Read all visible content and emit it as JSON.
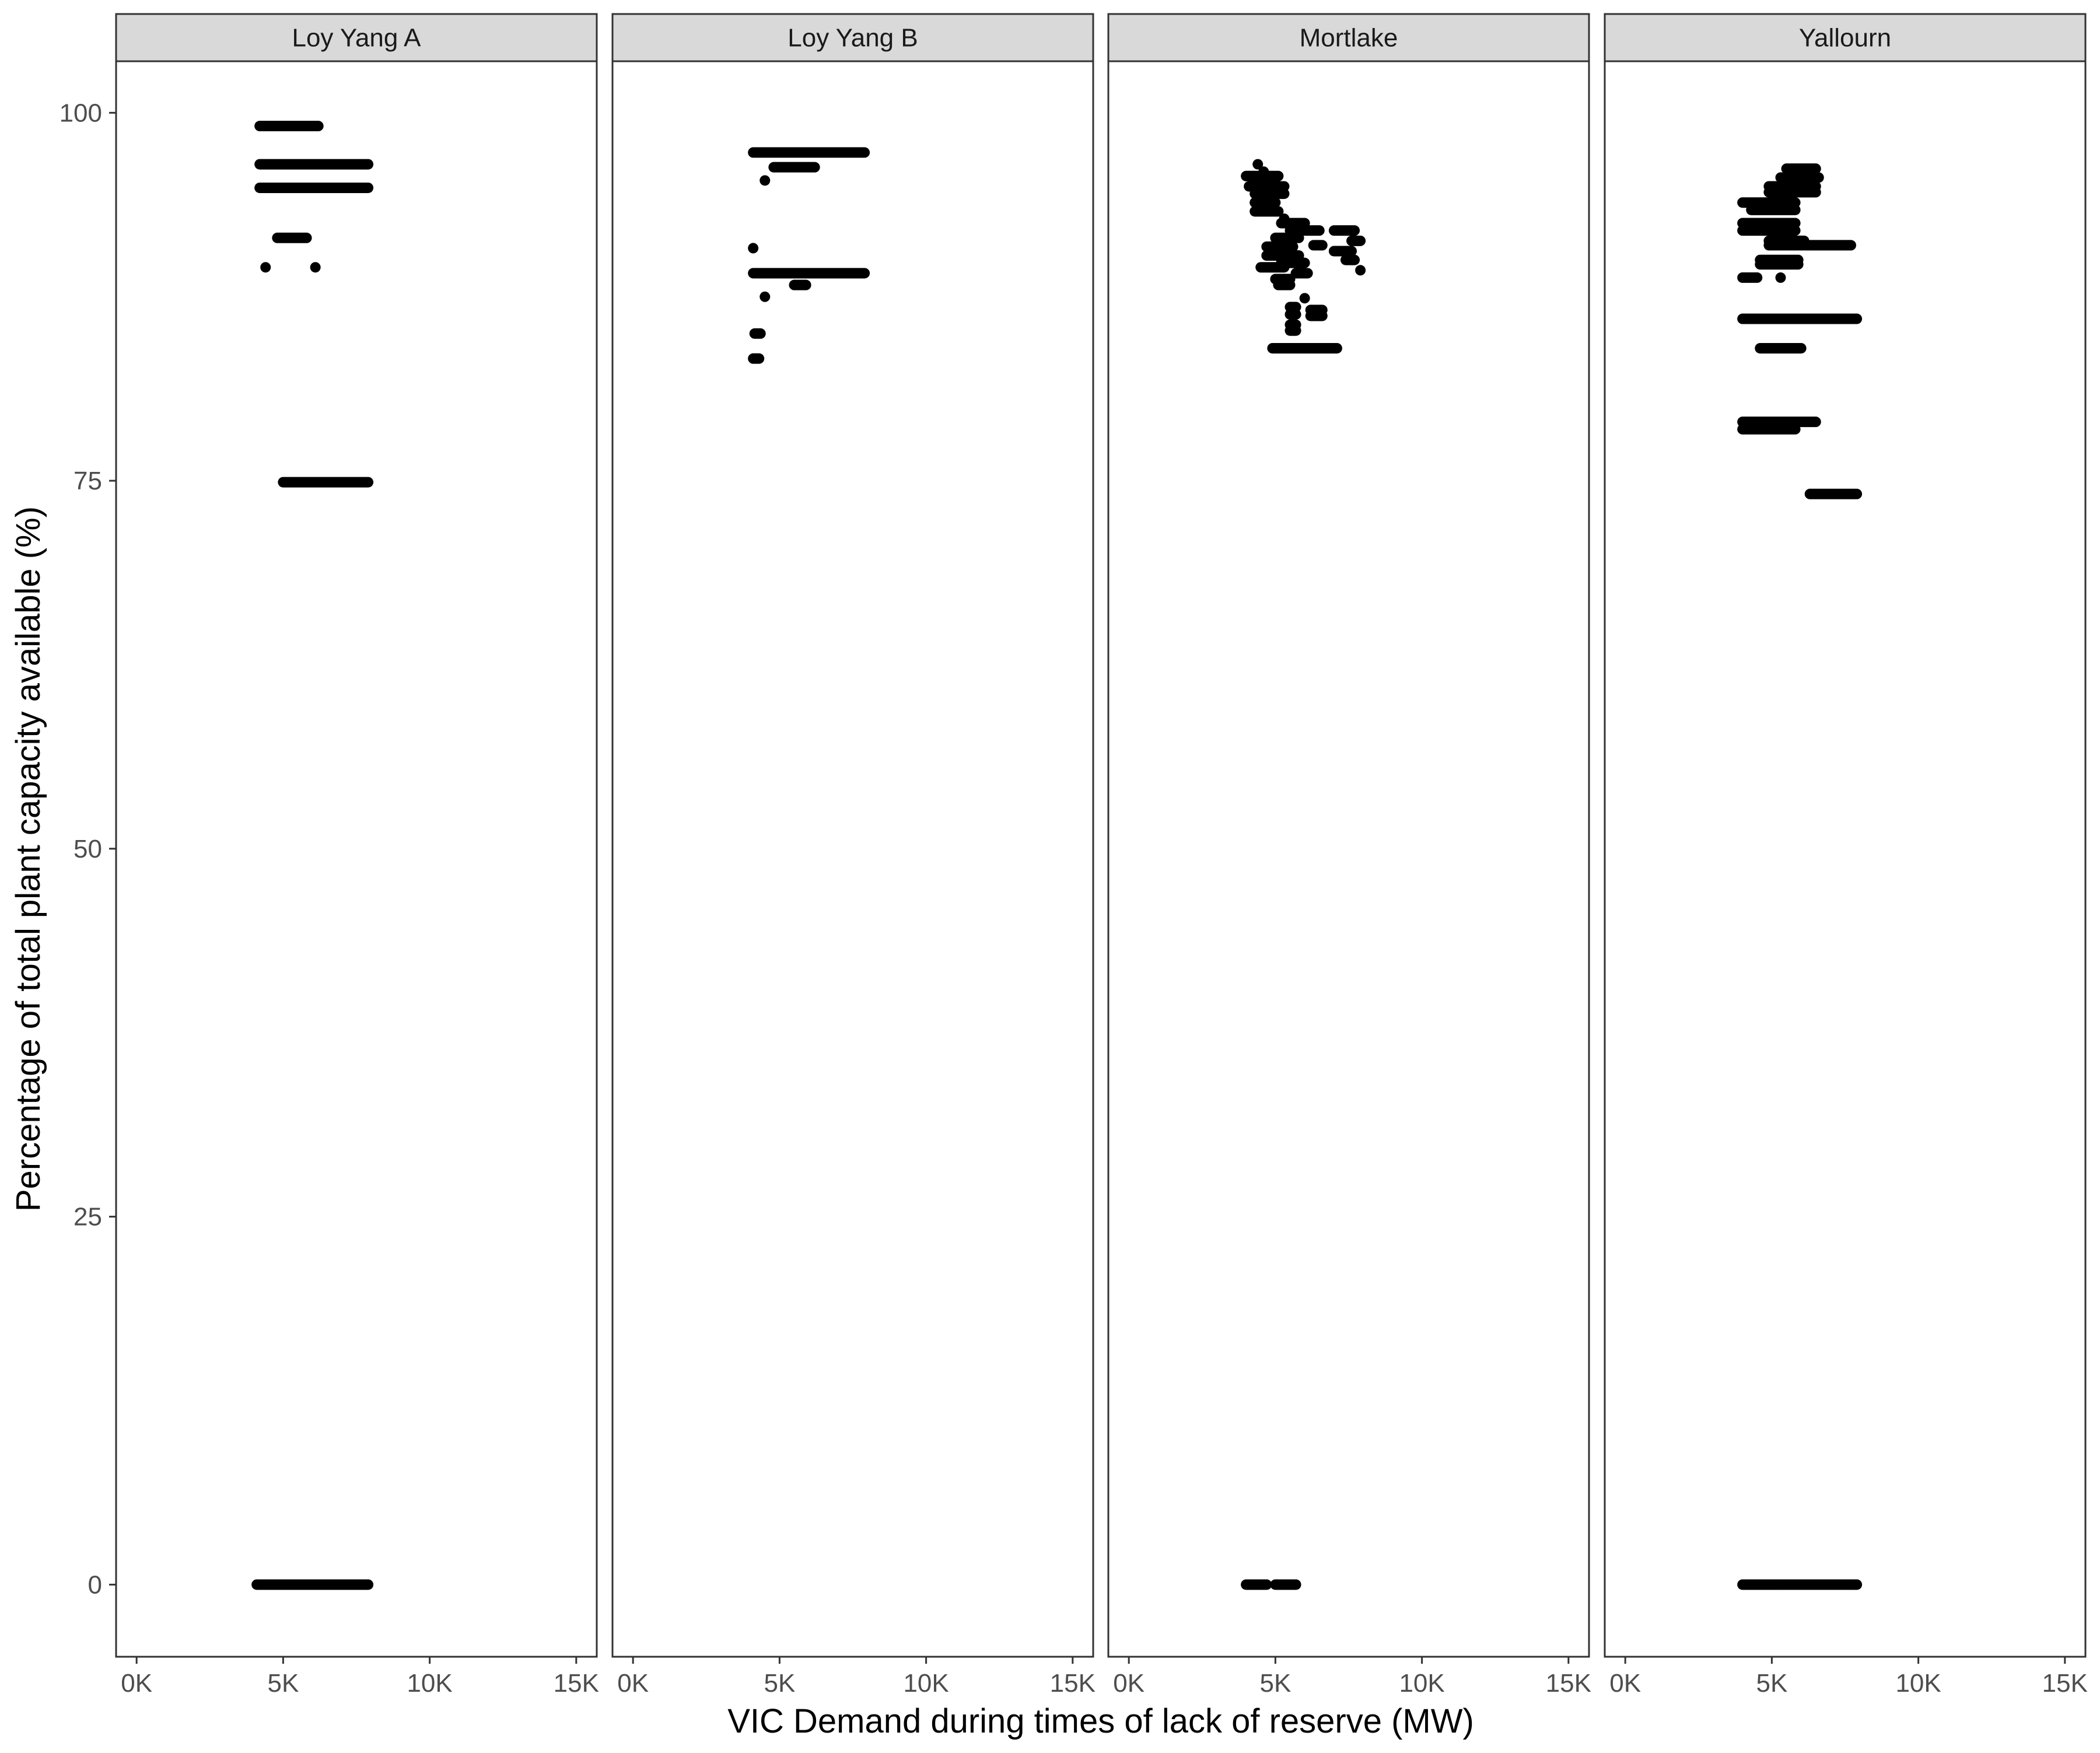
{
  "chart_data": {
    "type": "scatter",
    "facet_by": "plant",
    "xlabel": "VIC Demand during times of lack of reserve (MW)",
    "ylabel": "Percentage of total plant capacity available (%)",
    "xlim": [
      -700,
      15700
    ],
    "ylim": [
      -4.9,
      103.5
    ],
    "x_ticks": [
      0,
      5000,
      10000,
      15000
    ],
    "x_tick_labels": [
      "0K",
      "5K",
      "10K",
      "15K"
    ],
    "y_ticks": [
      0,
      25,
      50,
      75,
      100
    ],
    "y_tick_labels": [
      "0",
      "25",
      "50",
      "75",
      "100"
    ],
    "grid": false,
    "legend": "none",
    "colors": {
      "point": "#000000",
      "strip_fill": "#d9d9d9",
      "panel_border": "#333333",
      "tick_label": "#4d4d4d"
    },
    "panels": [
      {
        "name": "Loy Yang A",
        "segments": [
          {
            "x0": 4200,
            "x1": 6200,
            "y": 99.1
          },
          {
            "x0": 4200,
            "x1": 7900,
            "y": 96.5
          },
          {
            "x0": 4200,
            "x1": 7900,
            "y": 94.9
          },
          {
            "x0": 4800,
            "x1": 5800,
            "y": 91.5
          },
          {
            "x0": 5000,
            "x1": 7900,
            "y": 74.9
          },
          {
            "x0": 4100,
            "x1": 7900,
            "y": 0
          }
        ],
        "points": [
          {
            "x": 4400,
            "y": 89.5
          },
          {
            "x": 6100,
            "y": 89.5
          }
        ]
      },
      {
        "name": "Loy Yang B",
        "segments": [
          {
            "x0": 4100,
            "x1": 7900,
            "y": 97.3
          },
          {
            "x0": 4800,
            "x1": 6200,
            "y": 96.3
          },
          {
            "x0": 4100,
            "x1": 7900,
            "y": 89.1
          },
          {
            "x0": 5500,
            "x1": 5900,
            "y": 88.3
          },
          {
            "x0": 4150,
            "x1": 4350,
            "y": 85.0
          },
          {
            "x0": 4100,
            "x1": 4300,
            "y": 83.3
          }
        ],
        "points": [
          {
            "x": 4500,
            "y": 95.4
          },
          {
            "x": 4100,
            "y": 90.8
          },
          {
            "x": 4500,
            "y": 87.5
          }
        ]
      },
      {
        "name": "Mortlake",
        "segments": [
          {
            "x0": 4000,
            "x1": 5100,
            "y": 95.7
          },
          {
            "x0": 4100,
            "x1": 5300,
            "y": 95.0
          },
          {
            "x0": 4300,
            "x1": 5300,
            "y": 94.5
          },
          {
            "x0": 4300,
            "x1": 5000,
            "y": 93.9
          },
          {
            "x0": 4300,
            "x1": 5100,
            "y": 93.3
          },
          {
            "x0": 5200,
            "x1": 6000,
            "y": 92.5
          },
          {
            "x0": 5500,
            "x1": 6500,
            "y": 92.0
          },
          {
            "x0": 7000,
            "x1": 7700,
            "y": 92.0
          },
          {
            "x0": 5000,
            "x1": 5800,
            "y": 91.5
          },
          {
            "x0": 7600,
            "x1": 7900,
            "y": 91.3
          },
          {
            "x0": 4700,
            "x1": 5600,
            "y": 90.9
          },
          {
            "x0": 6300,
            "x1": 6600,
            "y": 91.0
          },
          {
            "x0": 7000,
            "x1": 7600,
            "y": 90.6
          },
          {
            "x0": 4700,
            "x1": 5800,
            "y": 90.3
          },
          {
            "x0": 5200,
            "x1": 6000,
            "y": 89.8
          },
          {
            "x0": 7400,
            "x1": 7700,
            "y": 90.0
          },
          {
            "x0": 4500,
            "x1": 5300,
            "y": 89.5
          },
          {
            "x0": 5700,
            "x1": 6100,
            "y": 89.1
          },
          {
            "x0": 5000,
            "x1": 5500,
            "y": 88.7
          },
          {
            "x0": 5100,
            "x1": 5500,
            "y": 88.3
          },
          {
            "x0": 5500,
            "x1": 5700,
            "y": 86.8
          },
          {
            "x0": 6200,
            "x1": 6600,
            "y": 86.6
          },
          {
            "x0": 5500,
            "x1": 5700,
            "y": 86.3
          },
          {
            "x0": 6200,
            "x1": 6600,
            "y": 86.2
          },
          {
            "x0": 5500,
            "x1": 5700,
            "y": 85.6
          },
          {
            "x0": 5500,
            "x1": 5700,
            "y": 85.2
          },
          {
            "x0": 4900,
            "x1": 7100,
            "y": 84.0
          },
          {
            "x0": 4000,
            "x1": 4700,
            "y": 0
          },
          {
            "x0": 5000,
            "x1": 5700,
            "y": 0
          }
        ],
        "points": [
          {
            "x": 4400,
            "y": 96.5
          },
          {
            "x": 4600,
            "y": 96.0
          },
          {
            "x": 5300,
            "y": 92.8
          },
          {
            "x": 7900,
            "y": 89.3
          },
          {
            "x": 6000,
            "y": 87.4
          }
        ]
      },
      {
        "name": "Yallourn",
        "segments": [
          {
            "x0": 5500,
            "x1": 6500,
            "y": 96.2
          },
          {
            "x0": 5300,
            "x1": 6600,
            "y": 95.6
          },
          {
            "x0": 4900,
            "x1": 6500,
            "y": 95.0
          },
          {
            "x0": 4900,
            "x1": 6500,
            "y": 94.6
          },
          {
            "x0": 4000,
            "x1": 5800,
            "y": 93.9
          },
          {
            "x0": 4300,
            "x1": 5800,
            "y": 93.4
          },
          {
            "x0": 4000,
            "x1": 5800,
            "y": 92.5
          },
          {
            "x0": 4000,
            "x1": 5800,
            "y": 92.0
          },
          {
            "x0": 4900,
            "x1": 6100,
            "y": 91.3
          },
          {
            "x0": 4900,
            "x1": 7700,
            "y": 91.0
          },
          {
            "x0": 4600,
            "x1": 5900,
            "y": 90.0
          },
          {
            "x0": 4600,
            "x1": 5900,
            "y": 89.7
          },
          {
            "x0": 4000,
            "x1": 4500,
            "y": 88.8
          },
          {
            "x0": 4000,
            "x1": 7900,
            "y": 86.0
          },
          {
            "x0": 4600,
            "x1": 6000,
            "y": 84.0
          },
          {
            "x0": 4000,
            "x1": 6500,
            "y": 79.0
          },
          {
            "x0": 4000,
            "x1": 5800,
            "y": 78.5
          },
          {
            "x0": 6300,
            "x1": 7900,
            "y": 74.1
          },
          {
            "x0": 4000,
            "x1": 7900,
            "y": 0
          }
        ],
        "points": [
          {
            "x": 5300,
            "y": 88.8
          }
        ]
      }
    ]
  }
}
